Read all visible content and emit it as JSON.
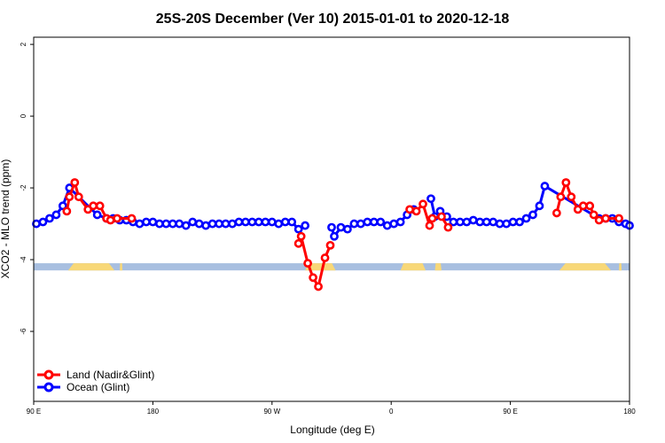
{
  "chart_data": {
    "type": "line",
    "title": "25S-20S December (Ver 10)   2015-01-01 to 2020-12-18",
    "xlabel": "Longitude (deg E)",
    "ylabel": "XCO2 - MLO trend (ppm)",
    "xlim": [
      90,
      540
    ],
    "ylim": [
      -8,
      2
    ],
    "x_ticks": [
      {
        "value": 90,
        "label": "90 E"
      },
      {
        "value": 180,
        "label": "180"
      },
      {
        "value": 270,
        "label": "90 W"
      },
      {
        "value": 360,
        "label": "0"
      },
      {
        "value": 450,
        "label": "90 E"
      },
      {
        "value": 540,
        "label": "180"
      }
    ],
    "y_ticks": [
      {
        "value": 2,
        "label": "2"
      },
      {
        "value": 0,
        "label": "0"
      },
      {
        "value": -2,
        "label": "-2"
      },
      {
        "value": -4,
        "label": "-4"
      },
      {
        "value": -6,
        "label": "-6"
      }
    ],
    "colors": {
      "land": "#ff0000",
      "ocean": "#0000ff",
      "land_band": "#f8d878",
      "ocean_band": "#a8bfe0",
      "axis": "#000000"
    },
    "land_ocean_band": {
      "y_range": [
        -4.3,
        -4.1
      ],
      "land_segments": [
        [
          116,
          151
        ],
        [
          155,
          157
        ],
        [
          295,
          318
        ],
        [
          367,
          386
        ],
        [
          393,
          398
        ],
        [
          487,
          526
        ],
        [
          532,
          534
        ]
      ]
    },
    "legend": {
      "position": "bottom-left",
      "entries": [
        {
          "name": "Land (Nadir&Glint)",
          "color": "#ff0000"
        },
        {
          "name": "Ocean (Glint)",
          "color": "#0000ff"
        }
      ]
    },
    "series": [
      {
        "name": "Land (Nadir&Glint)",
        "color": "#ff0000",
        "segments": [
          [
            [
              115,
              -2.65
            ],
            [
              117,
              -2.25
            ],
            [
              121,
              -1.85
            ],
            [
              124,
              -2.25
            ],
            [
              131,
              -2.6
            ],
            [
              135,
              -2.5
            ],
            [
              140,
              -2.5
            ],
            [
              145,
              -2.85
            ],
            [
              148,
              -2.9
            ],
            [
              153,
              -2.85
            ],
            [
              164,
              -2.85
            ]
          ],
          [
            [
              290,
              -3.55
            ],
            [
              292,
              -3.35
            ],
            [
              297,
              -4.1
            ],
            [
              301,
              -4.5
            ],
            [
              305,
              -4.75
            ],
            [
              310,
              -3.95
            ],
            [
              314,
              -3.6
            ]
          ],
          [
            [
              374,
              -2.6
            ],
            [
              379,
              -2.65
            ],
            [
              384,
              -2.45
            ],
            [
              389,
              -3.05
            ],
            [
              391,
              -2.85
            ],
            [
              398,
              -2.8
            ],
            [
              403,
              -3.1
            ]
          ],
          [
            [
              485,
              -2.7
            ],
            [
              488,
              -2.25
            ],
            [
              492,
              -1.85
            ],
            [
              496,
              -2.25
            ],
            [
              501,
              -2.6
            ],
            [
              505,
              -2.5
            ],
            [
              510,
              -2.5
            ],
            [
              513,
              -2.75
            ],
            [
              517,
              -2.9
            ],
            [
              522,
              -2.85
            ],
            [
              532,
              -2.85
            ]
          ]
        ]
      },
      {
        "name": "Ocean (Glint)",
        "color": "#0000ff",
        "segments": [
          [
            [
              92,
              -3.0
            ],
            [
              97,
              -2.95
            ],
            [
              102,
              -2.85
            ],
            [
              107,
              -2.75
            ],
            [
              112,
              -2.5
            ],
            [
              117,
              -2.0
            ],
            [
              138,
              -2.75
            ],
            [
              145,
              -2.85
            ],
            [
              150,
              -2.85
            ],
            [
              155,
              -2.9
            ],
            [
              160,
              -2.9
            ],
            [
              165,
              -2.95
            ],
            [
              170,
              -3.0
            ],
            [
              175,
              -2.95
            ],
            [
              180,
              -2.95
            ],
            [
              185,
              -3.0
            ],
            [
              190,
              -3.0
            ],
            [
              195,
              -3.0
            ],
            [
              200,
              -3.0
            ],
            [
              205,
              -3.05
            ],
            [
              210,
              -2.95
            ],
            [
              215,
              -3.0
            ],
            [
              220,
              -3.05
            ],
            [
              225,
              -3.0
            ],
            [
              230,
              -3.0
            ],
            [
              235,
              -3.0
            ],
            [
              240,
              -3.0
            ],
            [
              245,
              -2.95
            ],
            [
              250,
              -2.95
            ],
            [
              255,
              -2.95
            ],
            [
              260,
              -2.95
            ],
            [
              265,
              -2.95
            ],
            [
              270,
              -2.95
            ],
            [
              275,
              -3.0
            ],
            [
              280,
              -2.95
            ],
            [
              285,
              -2.95
            ],
            [
              290,
              -3.15
            ],
            [
              295,
              -3.05
            ]
          ],
          [
            [
              315,
              -3.1
            ],
            [
              317,
              -3.35
            ],
            [
              322,
              -3.1
            ],
            [
              327,
              -3.15
            ],
            [
              332,
              -3.0
            ],
            [
              337,
              -3.0
            ],
            [
              342,
              -2.95
            ],
            [
              347,
              -2.95
            ],
            [
              352,
              -2.95
            ],
            [
              357,
              -3.05
            ],
            [
              362,
              -3.0
            ],
            [
              367,
              -2.95
            ],
            [
              372,
              -2.75
            ],
            [
              377,
              -2.6
            ]
          ],
          [
            [
              390,
              -2.3
            ],
            [
              393,
              -2.8
            ],
            [
              397,
              -2.65
            ],
            [
              402,
              -2.8
            ],
            [
              407,
              -2.95
            ],
            [
              412,
              -2.95
            ],
            [
              417,
              -2.95
            ],
            [
              422,
              -2.9
            ],
            [
              427,
              -2.95
            ],
            [
              432,
              -2.95
            ],
            [
              437,
              -2.95
            ],
            [
              442,
              -3.0
            ],
            [
              447,
              -3.0
            ],
            [
              452,
              -2.95
            ],
            [
              457,
              -2.95
            ],
            [
              462,
              -2.85
            ],
            [
              467,
              -2.75
            ],
            [
              472,
              -2.5
            ],
            [
              476,
              -1.95
            ],
            [
              517,
              -2.85
            ],
            [
              522,
              -2.85
            ],
            [
              527,
              -2.85
            ],
            [
              532,
              -2.95
            ],
            [
              537,
              -3.0
            ],
            [
              540,
              -3.05
            ]
          ]
        ]
      }
    ]
  }
}
